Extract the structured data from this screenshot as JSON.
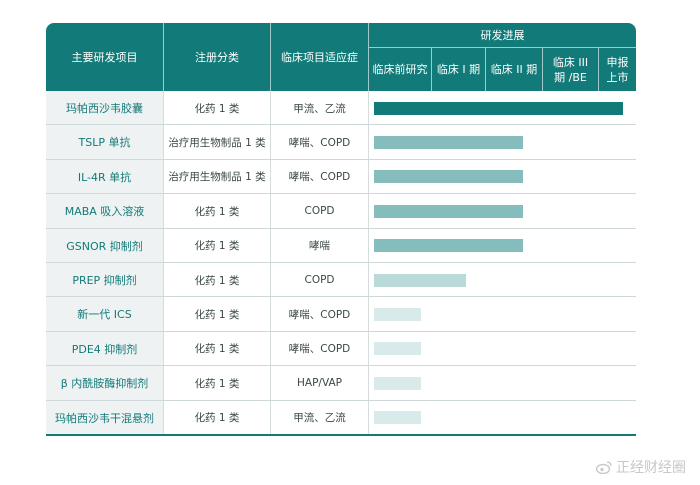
{
  "table": {
    "headers": {
      "project": "主要研发项目",
      "category": "注册分类",
      "indication": "临床项目适应症",
      "progress": "研发进展"
    },
    "stages": [
      "临床前研究",
      "临床 I 期",
      "临床 II 期",
      "临床 III 期 /BE",
      "申报 上市"
    ]
  },
  "chart_data": {
    "type": "bar",
    "orientation": "horizontal",
    "stage_labels": [
      "临床前研究",
      "临床 I 期",
      "临床 II 期",
      "临床 III 期 /BE",
      "申报 上市"
    ],
    "rows": [
      {
        "name": "玛帕西沙韦胶囊",
        "category": "化药 1 类",
        "indication": "甲流、乙流",
        "progress": 5,
        "color": "#127a78"
      },
      {
        "name": "TSLP 单抗",
        "category": "治疗用生物制品 1 类",
        "indication": "哮喘、COPD",
        "progress": 3,
        "color": "#84bdbb"
      },
      {
        "name": "IL-4R 单抗",
        "category": "治疗用生物制品 1 类",
        "indication": "哮喘、COPD",
        "progress": 3,
        "color": "#84bdbb"
      },
      {
        "name": "MABA 吸入溶液",
        "category": "化药 1 类",
        "indication": "COPD",
        "progress": 3,
        "color": "#84bdbb"
      },
      {
        "name": "GSNOR 抑制剂",
        "category": "化药 1 类",
        "indication": "哮喘",
        "progress": 3,
        "color": "#84bdbb"
      },
      {
        "name": "PREP 抑制剂",
        "category": "化药 1 类",
        "indication": "COPD",
        "progress": 1.85,
        "color": "#b9dad9"
      },
      {
        "name": "新一代 ICS",
        "category": "化药 1 类",
        "indication": "哮喘、COPD",
        "progress": 0.95,
        "color": "#d8ebea"
      },
      {
        "name": "PDE4 抑制剂",
        "category": "化药 1 类",
        "indication": "哮喘、COPD",
        "progress": 0.95,
        "color": "#d8ebea"
      },
      {
        "name": "β 内酰胺酶抑制剂",
        "category": "化药 1 类",
        "indication": "HAP/VAP",
        "progress": 0.95,
        "color": "#d8ebea"
      },
      {
        "name": "玛帕西沙韦干混悬剂",
        "category": "化药 1 类",
        "indication": "甲流、乙流",
        "progress": 0.95,
        "color": "#d8ebea"
      }
    ],
    "xlim": [
      0,
      5
    ]
  },
  "watermark": "正经财经圈"
}
